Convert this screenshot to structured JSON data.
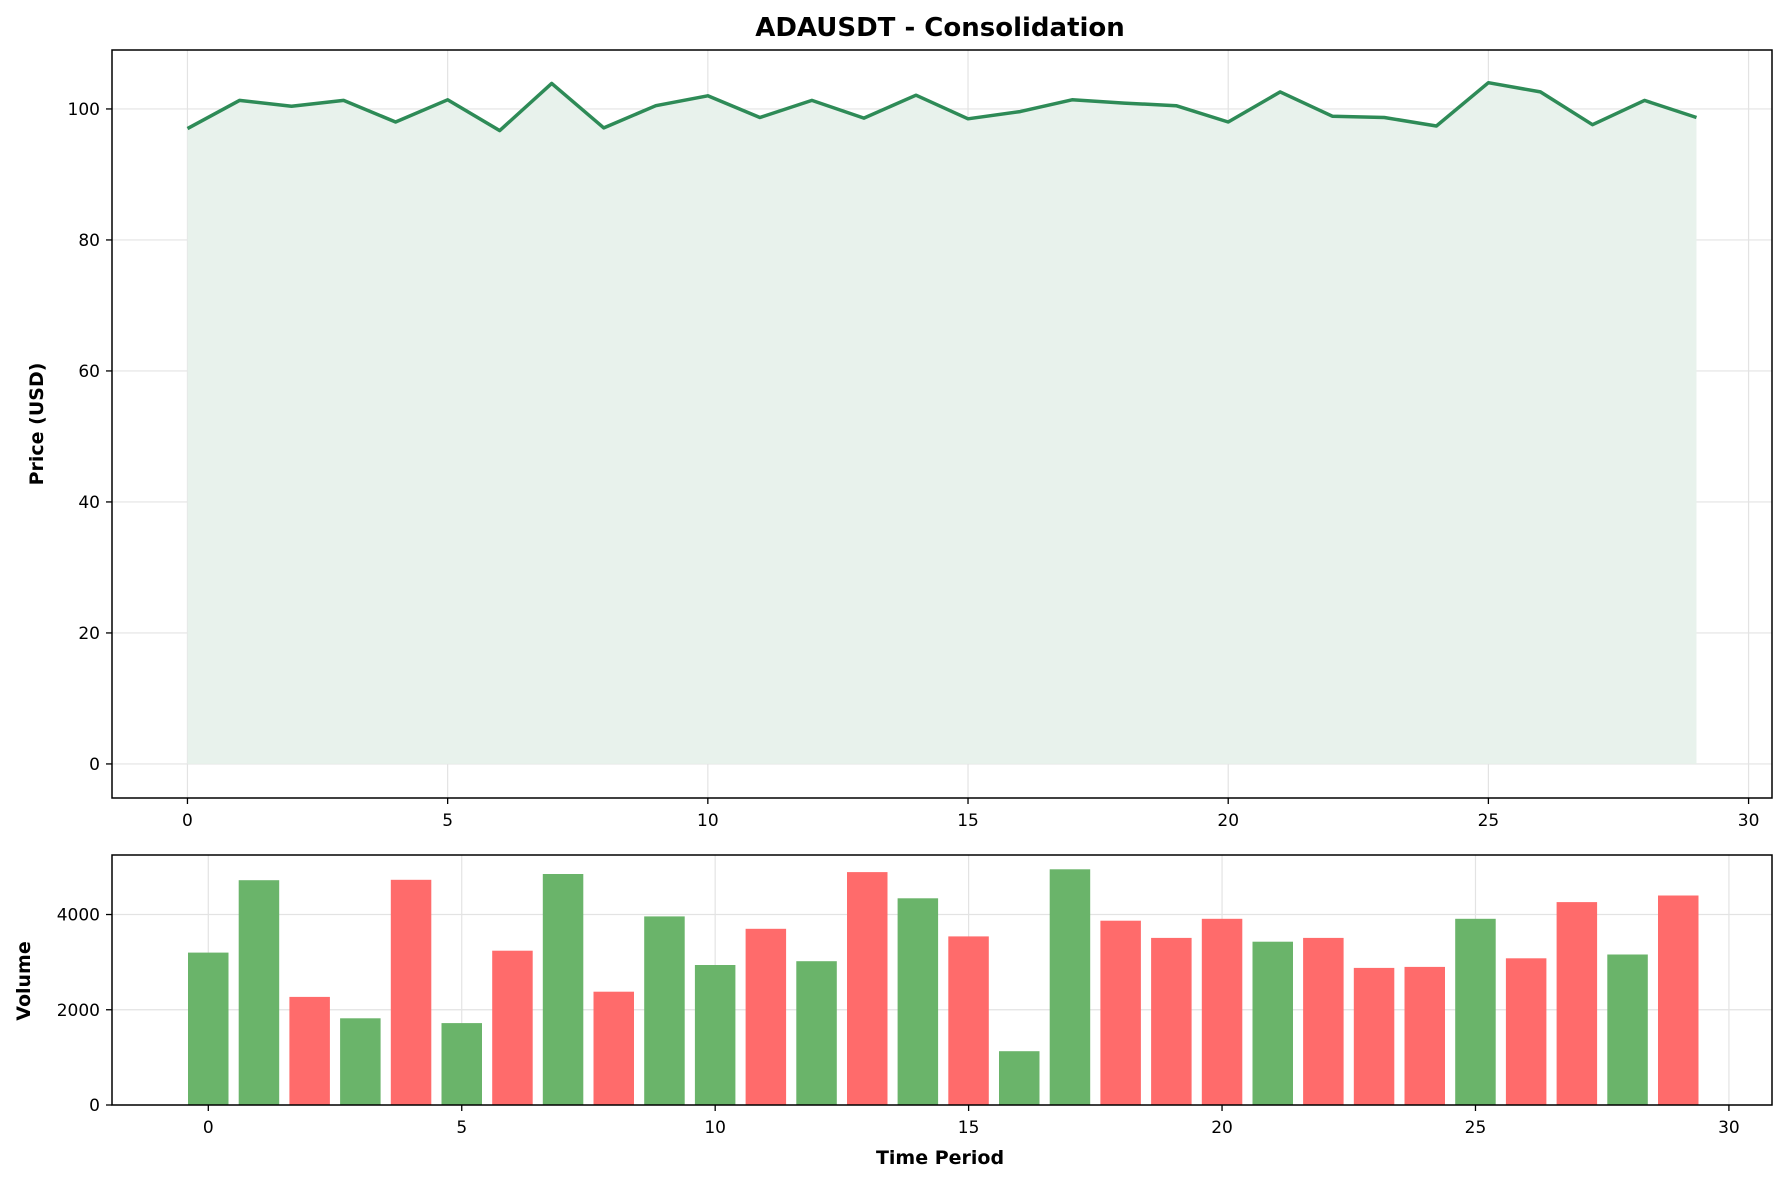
{
  "title": "ADAUSDT - Consolidation",
  "colors": {
    "price_line": "#2e8b57",
    "price_fill": "#e8f2ec",
    "volume_up": "#6ab46a",
    "volume_down": "#ff6b6b",
    "grid": "#e3e3e3"
  },
  "chart_data": [
    {
      "type": "area",
      "title": "ADAUSDT - Consolidation",
      "xlabel": "",
      "ylabel": "Price (USD)",
      "xlim": [
        -1.45,
        30.45
      ],
      "ylim": [
        -5.2,
        109.0
      ],
      "xticks": [
        0,
        5,
        10,
        15,
        20,
        25,
        30
      ],
      "yticks": [
        0,
        20,
        40,
        60,
        80,
        100
      ],
      "grid": true,
      "series": [
        {
          "x": [
            0,
            1,
            2,
            3,
            4,
            5,
            6,
            7,
            8,
            9,
            10,
            11,
            12,
            13,
            14,
            15,
            16,
            17,
            18,
            19,
            20,
            21,
            22,
            23,
            24,
            25,
            26,
            27,
            28,
            29
          ],
          "values": [
            97.0,
            101.3,
            100.4,
            101.3,
            98.0,
            101.4,
            96.7,
            103.9,
            97.1,
            100.5,
            102.0,
            98.7,
            101.3,
            98.6,
            102.1,
            98.5,
            99.6,
            101.4,
            100.9,
            100.5,
            98.0,
            102.6,
            98.9,
            98.7,
            97.4,
            104.0,
            102.6,
            97.6,
            101.3,
            98.7
          ]
        }
      ]
    },
    {
      "type": "bar",
      "title": "",
      "xlabel": "Time Period",
      "ylabel": "Volume",
      "xlim": [
        -1.9,
        30.85
      ],
      "ylim": [
        0,
        5250
      ],
      "xticks": [
        0,
        5,
        10,
        15,
        20,
        25,
        30
      ],
      "yticks": [
        0,
        2000,
        4000
      ],
      "grid": true,
      "categories": [
        0,
        1,
        2,
        3,
        4,
        5,
        6,
        7,
        8,
        9,
        10,
        11,
        12,
        13,
        14,
        15,
        16,
        17,
        18,
        19,
        20,
        21,
        22,
        23,
        24,
        25,
        26,
        27,
        28,
        29
      ],
      "values": [
        3200,
        4720,
        2270,
        1820,
        4730,
        1720,
        3240,
        4850,
        2380,
        3960,
        2940,
        3700,
        3020,
        4890,
        4340,
        3540,
        1130,
        4950,
        3870,
        3510,
        3910,
        3430,
        3510,
        2880,
        2900,
        3910,
        3080,
        4260,
        3160,
        4400
      ],
      "direction": [
        "up",
        "up",
        "down",
        "up",
        "down",
        "up",
        "down",
        "up",
        "down",
        "up",
        "up",
        "down",
        "up",
        "down",
        "up",
        "down",
        "up",
        "up",
        "down",
        "down",
        "down",
        "up",
        "down",
        "down",
        "down",
        "up",
        "down",
        "down",
        "up",
        "down"
      ]
    }
  ]
}
